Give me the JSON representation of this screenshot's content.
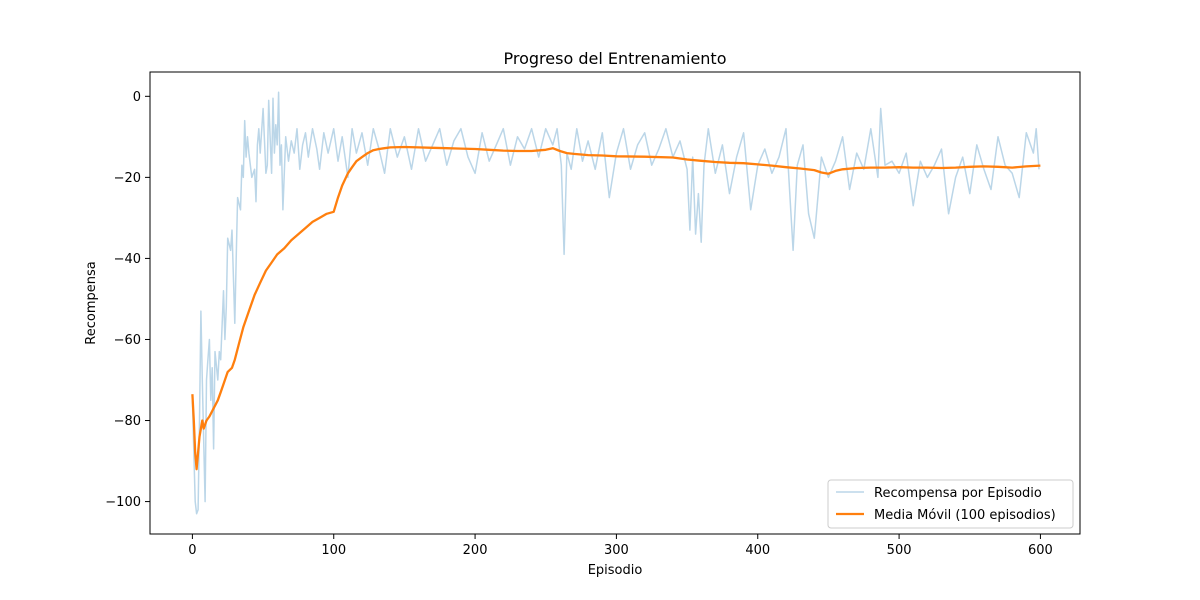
{
  "chart_data": {
    "type": "line",
    "title": "Progreso del Entrenamiento",
    "xlabel": "Episodio",
    "ylabel": "Recompensa",
    "xlim": [
      -30,
      628
    ],
    "ylim": [
      -108,
      6
    ],
    "xticks": [
      0,
      100,
      200,
      300,
      400,
      500,
      600
    ],
    "yticks": [
      0,
      -20,
      -40,
      -60,
      -80,
      -100
    ],
    "grid": false,
    "legend_position": "lower-right",
    "series": [
      {
        "name": "Recompensa por Episodio",
        "color": "#1f77b4",
        "opacity": 0.3,
        "x": [
          0,
          2,
          3,
          4,
          5,
          6,
          7,
          8,
          9,
          10,
          11,
          12,
          13,
          14,
          15,
          16,
          18,
          19,
          20,
          22,
          23,
          24,
          25,
          27,
          28,
          30,
          31,
          32,
          34,
          35,
          36,
          37,
          38,
          39,
          40,
          42,
          44,
          45,
          46,
          47,
          48,
          50,
          51,
          52,
          53,
          54,
          55,
          56,
          57,
          58,
          59,
          60,
          61,
          62,
          63,
          64,
          66,
          68,
          70,
          72,
          74,
          76,
          78,
          80,
          82,
          85,
          88,
          90,
          93,
          96,
          100,
          103,
          106,
          110,
          113,
          116,
          120,
          124,
          128,
          132,
          136,
          140,
          145,
          150,
          155,
          160,
          165,
          170,
          175,
          180,
          185,
          190,
          195,
          200,
          205,
          210,
          215,
          220,
          225,
          230,
          235,
          240,
          245,
          250,
          255,
          258,
          261,
          263,
          265,
          268,
          272,
          276,
          280,
          285,
          290,
          295,
          300,
          305,
          310,
          315,
          320,
          325,
          330,
          335,
          340,
          345,
          350,
          352,
          354,
          356,
          358,
          360,
          362,
          365,
          370,
          375,
          380,
          385,
          390,
          395,
          400,
          405,
          410,
          415,
          420,
          425,
          428,
          432,
          436,
          440,
          445,
          450,
          455,
          460,
          465,
          470,
          475,
          480,
          485,
          487,
          490,
          495,
          500,
          505,
          510,
          515,
          520,
          525,
          530,
          535,
          540,
          545,
          550,
          555,
          560,
          565,
          570,
          575,
          580,
          585,
          590,
          595,
          597,
          599
        ],
        "y": [
          -75,
          -100,
          -103,
          -102,
          -80,
          -53,
          -70,
          -85,
          -100,
          -70,
          -65,
          -60,
          -75,
          -67,
          -87,
          -63,
          -70,
          -63,
          -65,
          -48,
          -60,
          -52,
          -35,
          -38,
          -33,
          -56,
          -40,
          -25,
          -28,
          -17,
          -20,
          -6,
          -15,
          -10,
          -14,
          -20,
          -18,
          -26,
          -12,
          -8,
          -14,
          -3,
          -11,
          -19,
          -17,
          -1,
          -10,
          -19,
          -0.5,
          -14,
          -7,
          -12,
          1,
          -17,
          -12,
          -28,
          -10,
          -16,
          -11,
          -14,
          -8,
          -18,
          -12,
          -9,
          -15,
          -8,
          -13,
          -18,
          -9,
          -14,
          -8,
          -16,
          -10,
          -20,
          -8,
          -14,
          -9,
          -17,
          -8,
          -13,
          -19,
          -8,
          -15,
          -10,
          -18,
          -8,
          -16,
          -12,
          -8,
          -17,
          -11,
          -8,
          -15,
          -19,
          -9,
          -16,
          -12,
          -8,
          -17,
          -10,
          -13,
          -8,
          -15,
          -8,
          -12,
          -8,
          -17,
          -39,
          -14,
          -18,
          -8,
          -16,
          -11,
          -18,
          -9,
          -25,
          -14,
          -8,
          -18,
          -12,
          -9,
          -17,
          -13,
          -8,
          -15,
          -11,
          -18,
          -33,
          -15,
          -34,
          -24,
          -36,
          -17,
          -8,
          -19,
          -12,
          -24,
          -15,
          -9,
          -28,
          -17,
          -13,
          -19,
          -15,
          -8,
          -38,
          -17,
          -12,
          -29,
          -35,
          -15,
          -20,
          -16,
          -10,
          -23,
          -14,
          -18,
          -8,
          -20,
          -3,
          -17,
          -16,
          -19,
          -14,
          -27,
          -16,
          -20,
          -17,
          -13,
          -29,
          -20,
          -15,
          -24,
          -12,
          -18,
          -23,
          -10,
          -17,
          -19,
          -25,
          -9,
          -14,
          -8,
          -18
        ],
        "line_width": 1.5
      },
      {
        "name": "Media Móvil (100 episodios)",
        "color": "#ff7f0e",
        "opacity": 1,
        "line_width": 2.3,
        "x": [
          0,
          1,
          2,
          3,
          5,
          7,
          8,
          10,
          12,
          15,
          18,
          20,
          22,
          25,
          28,
          30,
          33,
          36,
          40,
          44,
          48,
          52,
          56,
          60,
          65,
          70,
          75,
          80,
          85,
          90,
          95,
          100,
          103,
          106,
          110,
          113,
          116,
          120,
          124,
          128,
          132,
          136,
          140,
          150,
          160,
          170,
          180,
          190,
          200,
          210,
          220,
          230,
          240,
          250,
          255,
          260,
          265,
          270,
          280,
          290,
          300,
          320,
          340,
          350,
          360,
          370,
          380,
          390,
          400,
          410,
          420,
          430,
          440,
          445,
          450,
          455,
          460,
          470,
          480,
          490,
          500,
          510,
          520,
          530,
          540,
          550,
          560,
          570,
          580,
          590,
          600
        ],
        "y": [
          -73.5,
          -80,
          -88,
          -92,
          -84,
          -80,
          -82,
          -80,
          -79,
          -77,
          -75,
          -73,
          -71,
          -68,
          -67,
          -65,
          -61,
          -57,
          -53,
          -49,
          -46,
          -43,
          -41,
          -39,
          -37.5,
          -35.5,
          -34,
          -32.5,
          -31,
          -30,
          -29,
          -28.5,
          -25,
          -22,
          -19,
          -17.5,
          -16,
          -15,
          -14,
          -13.3,
          -13,
          -12.8,
          -12.6,
          -12.5,
          -12.6,
          -12.7,
          -12.8,
          -12.9,
          -13,
          -13.2,
          -13.4,
          -13.5,
          -13.5,
          -13.2,
          -12.8,
          -13.5,
          -14,
          -14.2,
          -14.5,
          -14.6,
          -14.8,
          -14.9,
          -15.1,
          -15.6,
          -15.9,
          -16.2,
          -16.4,
          -16.5,
          -16.8,
          -17.1,
          -17.5,
          -17.8,
          -18.2,
          -18.8,
          -19.1,
          -18.4,
          -18,
          -17.7,
          -17.6,
          -17.6,
          -17.5,
          -17.6,
          -17.6,
          -17.7,
          -17.6,
          -17.4,
          -17.3,
          -17.4,
          -17.6,
          -17.3,
          -17.1
        ]
      }
    ]
  }
}
